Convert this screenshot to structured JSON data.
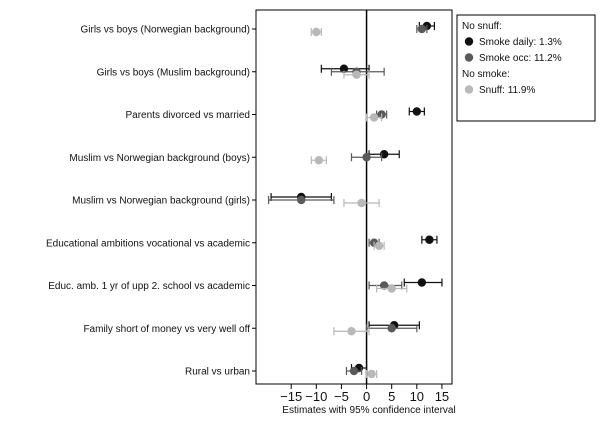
{
  "chart_data": {
    "type": "scatter",
    "title": "",
    "xlabel": "Estimates with 95% confidence interval",
    "ylabel": "",
    "xlim": [
      -22,
      17
    ],
    "xticks": [
      -15,
      -10,
      -5,
      0,
      5,
      10,
      15
    ],
    "xtick_labels": [
      "−15",
      "−10",
      "−5",
      "0",
      "5",
      "10",
      "15"
    ],
    "reference_line_x": 0,
    "grid": false,
    "legend_position": "top-right",
    "categories": [
      "Girls vs boys (Norwegian background)",
      "Girls vs boys (Muslim background)",
      "Parents divorced vs married",
      "Muslim vs Norwegian background (boys)",
      "Muslim vs Norwegian background (girls)",
      "Educational ambitions vocational vs academic",
      "Educ. amb. 1 yr of upp 2. school vs academic",
      "Family short of money vs very well off",
      "Rural vs urban"
    ],
    "legend_groups": [
      {
        "heading": "No snuff:",
        "entries": [
          0,
          1
        ]
      },
      {
        "heading": "No smoke:",
        "entries": [
          2
        ]
      }
    ],
    "series": [
      {
        "name": "Smoke daily: 1.3%",
        "color": "#111111",
        "offset": -1,
        "estimates": [
          12,
          -4.5,
          10,
          3.5,
          -13,
          12.5,
          11,
          5.5,
          -1.5
        ],
        "lower": [
          10.5,
          -9,
          8.5,
          0.5,
          -19,
          11,
          7.5,
          0.5,
          -3
        ],
        "upper": [
          13.5,
          0.5,
          11.5,
          6.5,
          -7,
          14,
          15,
          10.5,
          0
        ]
      },
      {
        "name": "Smoke occ: 11.2%",
        "color": "#5a5a5a",
        "offset": 0,
        "estimates": [
          11,
          -2,
          3,
          0,
          -13,
          1.5,
          3.5,
          5,
          -2.5
        ],
        "lower": [
          10,
          -7,
          2,
          -3,
          -19.5,
          0.5,
          0.5,
          0,
          -4
        ],
        "upper": [
          12,
          3.5,
          4,
          3,
          -6.5,
          2.5,
          7,
          10,
          -1
        ]
      },
      {
        "name": "Snuff: 11.9%",
        "color": "#b8b8b8",
        "offset": 1,
        "estimates": [
          -10,
          -2,
          1.5,
          -9.5,
          -1,
          2.5,
          5,
          -3,
          1
        ],
        "lower": [
          -11,
          -4.5,
          0,
          -11,
          -4.5,
          1.5,
          2,
          -6.5,
          0
        ],
        "upper": [
          -9,
          0.5,
          3,
          -8,
          2.5,
          3.5,
          8,
          0.5,
          2
        ]
      }
    ]
  }
}
